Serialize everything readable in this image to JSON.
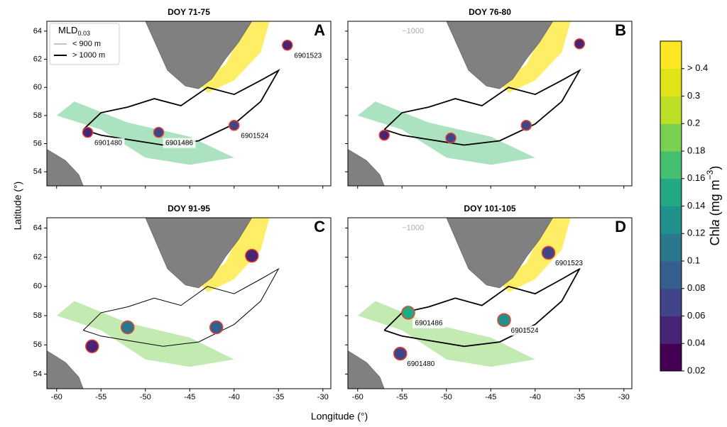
{
  "chart_data": {
    "type": "map",
    "xlabel": "Longitude (°)",
    "ylabel": "Latitude (°)",
    "xlim": [
      -61.1,
      -29.1
    ],
    "ylim": [
      53,
      64.7
    ],
    "xticks": [
      -60,
      -55,
      -50,
      -45,
      -40,
      -35,
      -30
    ],
    "yticks": [
      54,
      56,
      58,
      60,
      62,
      64
    ],
    "legend": {
      "title": "MLD",
      "title_sub": "0.03",
      "entries": [
        "< 900 m",
        "> 1000 m"
      ]
    },
    "colorbar": {
      "label_parts": [
        "Chl",
        "a",
        " (mg m",
        "−3",
        ")"
      ],
      "ticks": [
        0.02,
        0.04,
        0.06,
        0.08,
        0.1,
        0.12,
        0.14,
        0.16,
        0.18,
        0.2,
        0.3,
        {
          "value": 0.4,
          "label": "> 0.4"
        }
      ],
      "colors": [
        "#440154",
        "#482475",
        "#414487",
        "#355f8d",
        "#2a788e",
        "#21918c",
        "#22a884",
        "#44bf70",
        "#7ad151",
        "#bddf26",
        "#dfe318",
        "#fde725"
      ]
    },
    "panels": [
      {
        "title": "DOY 71-75",
        "letter": "A",
        "floats": [
          {
            "id": "6901523",
            "lon": -34,
            "lat": 63,
            "color": "#482475"
          },
          {
            "id": "6901486",
            "lon": -48.5,
            "lat": 56.8,
            "color": "#414487"
          },
          {
            "id": "6901524",
            "lon": -40,
            "lat": 57.3,
            "color": "#414487"
          },
          {
            "id": "6901480",
            "lon": -56.5,
            "lat": 56.8,
            "color": "#482475"
          }
        ]
      },
      {
        "title": "DOY 76-80",
        "letter": "B",
        "contour_label": "−1000",
        "floats": [
          {
            "lon": -35,
            "lat": 63.1,
            "color": "#482475"
          },
          {
            "lon": -57,
            "lat": 56.6,
            "color": "#482475"
          },
          {
            "lon": -49.5,
            "lat": 56.4,
            "color": "#414487"
          },
          {
            "lon": -41,
            "lat": 57.3,
            "color": "#414487"
          }
        ]
      },
      {
        "title": "DOY 91-95",
        "letter": "C",
        "floats": [
          {
            "lon": -38,
            "lat": 62.1,
            "color": "#482475"
          },
          {
            "lon": -56,
            "lat": 55.9,
            "color": "#482475"
          },
          {
            "lon": -52,
            "lat": 57.2,
            "color": "#2a788e"
          },
          {
            "lon": -42,
            "lat": 57.2,
            "color": "#355f8d"
          }
        ]
      },
      {
        "title": "DOY 101-105",
        "letter": "D",
        "contour_label": "−1000",
        "floats": [
          {
            "id": "6901523",
            "lon": -38.5,
            "lat": 62.3,
            "color": "#414487"
          },
          {
            "id": "6901486",
            "lon": -54.3,
            "lat": 58.2,
            "color": "#22a884"
          },
          {
            "id": "6901524",
            "lon": -43.5,
            "lat": 57.7,
            "color": "#21918c"
          },
          {
            "id": "6901480",
            "lon": -55.2,
            "lat": 55.4,
            "color": "#414487"
          }
        ]
      }
    ]
  }
}
